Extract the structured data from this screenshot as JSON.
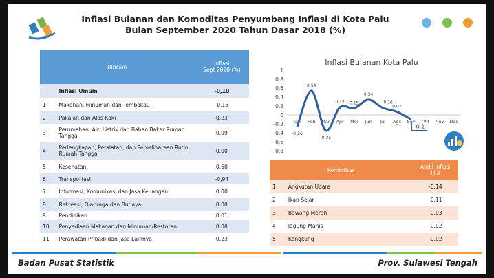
{
  "header": {
    "title": [
      "Inflasi Bulanan dan Komoditas Penyumbang Inflasi di Kota Palu",
      "Bulan September 2020 Tahun Dasar 2018 (%)"
    ]
  },
  "table": {
    "headers": [
      "Rincian",
      [
        "Inflasi",
        "Sept 2020 (%)"
      ]
    ],
    "rows": [
      [
        "",
        "Inflasi Umum",
        "-0,10"
      ],
      [
        "1",
        "Makanan, Minuman dan Tembakau",
        "-0,15"
      ],
      [
        "2",
        "Pakaian dan Alas Kaki",
        "0.23"
      ],
      [
        "3",
        "Perumahan, Air, Listrik dan Bahan Bakar Rumah Tangga",
        "0.09"
      ],
      [
        "4",
        "Perlengkapan, Peralatan, dan Pemeliharaan Rutin Rumah Tangga",
        "0.00"
      ],
      [
        "5",
        "Kesehatan",
        "0.60"
      ],
      [
        "6",
        "Transportasi",
        "-0,94"
      ],
      [
        "7",
        "Informasi, Komunikasi dan Jasa Keuangan",
        "0.00"
      ],
      [
        "8",
        "Rekreasi, Olahraga dan Budaya",
        "0.00"
      ],
      [
        "9",
        "Pendidikan",
        "0.01"
      ],
      [
        "10",
        "Penyediaan Makanan dan Minuman/Restoran",
        "0.00"
      ],
      [
        "11",
        "Perawatan Pribadi dan Jasa Lainnya",
        "0.23"
      ]
    ]
  },
  "chart_data": {
    "type": "line",
    "title": "Inflasi Bulanan Kota Palu",
    "categories": [
      "Jan",
      "Feb",
      "Mar",
      "Apr",
      "Mei",
      "Jun",
      "Jul",
      "Ags",
      "Sep",
      "Okt",
      "Nov",
      "Des"
    ],
    "values": [
      -0.26,
      0.54,
      -0.35,
      0.17,
      0.15,
      0.34,
      0.16,
      0.07,
      -0.1,
      null,
      null,
      null
    ],
    "value_labels": [
      "-0.26",
      "0.54",
      "-0.35",
      "0.17",
      "0.15",
      "0.34",
      "0.16",
      "0.07",
      "-0,1",
      null,
      null,
      null
    ],
    "color": "#2e5f9e",
    "ylim": [
      -0.8,
      1
    ],
    "yticks": [
      1,
      0.8,
      0.6,
      0.4,
      0.2,
      0,
      -0.2,
      -0.4,
      -0.6,
      -0.8
    ]
  },
  "commodity_table": {
    "headers": [
      "Komoditas",
      [
        "Andil Inflasi",
        "(%)"
      ]
    ],
    "rows": [
      [
        "1",
        "Angkutan Udara",
        "-0.14"
      ],
      [
        "2",
        "Ikan Selar",
        "-0.11"
      ],
      [
        "3",
        "Bawang Merah",
        "-0.03"
      ],
      [
        "4",
        "Jagung Manis",
        "-0.02"
      ],
      [
        "5",
        "Kangkung",
        "-0.02"
      ]
    ]
  },
  "footer": {
    "left": "Badan Pusat Statistik",
    "right": "Prov. Sulawesi Tengah"
  }
}
